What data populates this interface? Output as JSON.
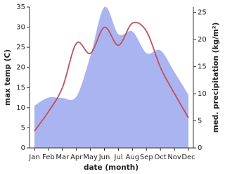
{
  "chart_data": {
    "type": "line_area",
    "x_label": "date (month)",
    "y_label": "max temp (C)",
    "y2_label": "med. precipitation (kg/m²)",
    "categories": [
      "Jan",
      "Feb",
      "Mar",
      "Apr",
      "May",
      "Jun",
      "Jul",
      "Aug",
      "Sep",
      "Oct",
      "Nov",
      "Dec"
    ],
    "series": [
      {
        "name": "max temp",
        "color": "#c0505a",
        "kind": "line",
        "axis": "y",
        "values": [
          4.2,
          9,
          15,
          26,
          23.5,
          30,
          25.5,
          31,
          29,
          20,
          13.5,
          7.5
        ]
      },
      {
        "name": "precipitation",
        "color": "#aab4f0",
        "kind": "area",
        "axis": "y2",
        "values": [
          7.8,
          9.3,
          9.2,
          9.5,
          17,
          26,
          21,
          21.5,
          17.5,
          18,
          14,
          9.8
        ]
      }
    ],
    "ylim": [
      0,
      35
    ],
    "yticks": [
      0,
      5,
      10,
      15,
      20,
      25,
      30,
      35
    ],
    "y2lim": [
      0,
      26
    ],
    "y2ticks": [
      0,
      5,
      10,
      15,
      20,
      25
    ]
  }
}
